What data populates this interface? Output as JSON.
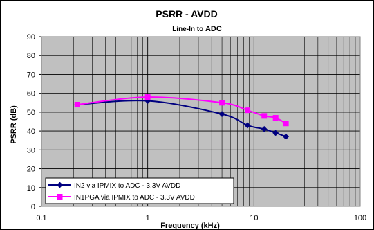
{
  "chart_data": {
    "type": "line",
    "title": "PSRR - AVDD",
    "subtitle_parts": [
      "Line-In to ",
      "ADC"
    ],
    "xlabel": "Frequency (kHz)",
    "ylabel": "PSRR (dB)",
    "x_scale": "log",
    "xlim": [
      0.1,
      100
    ],
    "ylim": [
      0,
      90
    ],
    "y_ticks": [
      0,
      10,
      20,
      30,
      40,
      50,
      60,
      70,
      80,
      90
    ],
    "x_ticks": [
      0.1,
      1,
      10,
      100
    ],
    "x_tick_labels": [
      "0.1",
      "1",
      "10",
      "100"
    ],
    "grid": true,
    "legend_position": "bottom-left",
    "series": [
      {
        "name": "IN2 via IPMIX to ADC - 3.3V AVDD",
        "color": "#000080",
        "marker": "diamond",
        "x": [
          0.217,
          1.0,
          5.0,
          8.7,
          12.5,
          16.0,
          20.0
        ],
        "y": [
          54,
          56,
          49,
          43,
          41,
          39,
          37
        ]
      },
      {
        "name": "IN1PGA via IPMIX to ADC - 3.3V AVDD",
        "color": "#ff00ff",
        "marker": "square",
        "x": [
          0.217,
          1.0,
          5.0,
          8.7,
          12.5,
          16.0,
          20.0
        ],
        "y": [
          54,
          58,
          55,
          51,
          48,
          47,
          44
        ]
      }
    ]
  }
}
